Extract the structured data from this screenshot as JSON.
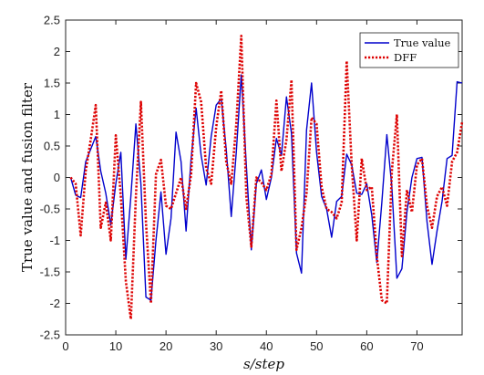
{
  "chart_data": {
    "type": "line",
    "xlabel": "s/step",
    "ylabel": "True value and fusion filter",
    "xlim": [
      0,
      79
    ],
    "ylim": [
      -2.5,
      2.5
    ],
    "xticks": [
      0,
      10,
      20,
      30,
      40,
      50,
      60,
      70
    ],
    "yticks": [
      -2.5,
      -2,
      -1.5,
      -1,
      -0.5,
      0,
      0.5,
      1,
      1.5,
      2,
      2.5
    ],
    "xtick_labels": [
      "0",
      "10",
      "20",
      "30",
      "40",
      "50",
      "60",
      "70"
    ],
    "ytick_labels": [
      "-2.5",
      "-2",
      "-1.5",
      "-1",
      "-0.5",
      "0",
      "0.5",
      "1",
      "1.5",
      "2",
      "2.5"
    ],
    "grid": false,
    "legend_position": "top-right",
    "x": [
      1,
      2,
      3,
      4,
      5,
      6,
      7,
      8,
      9,
      10,
      11,
      12,
      13,
      14,
      15,
      16,
      17,
      18,
      19,
      20,
      21,
      22,
      23,
      24,
      25,
      26,
      27,
      28,
      29,
      30,
      31,
      32,
      33,
      34,
      35,
      36,
      37,
      38,
      39,
      40,
      41,
      42,
      43,
      44,
      45,
      46,
      47,
      48,
      49,
      50,
      51,
      52,
      53,
      54,
      55,
      56,
      57,
      58,
      59,
      60,
      61,
      62,
      63,
      64,
      65,
      66,
      67,
      68,
      69,
      70,
      71,
      72,
      73,
      74,
      75,
      76,
      77,
      78,
      79
    ],
    "series": [
      {
        "name": "True value",
        "color": "#0000cc",
        "style": "solid",
        "values": [
          0,
          -0.28,
          -0.32,
          0.25,
          0.45,
          0.65,
          0.1,
          -0.25,
          -0.75,
          -0.1,
          0.4,
          -1.3,
          -0.3,
          0.85,
          -0.1,
          -1.9,
          -1.95,
          -1.0,
          -0.23,
          -1.22,
          -0.65,
          0.72,
          0.25,
          -0.85,
          0.3,
          1.1,
          0.35,
          -0.12,
          0.65,
          1.15,
          1.25,
          0.45,
          -0.62,
          0.4,
          1.63,
          0.2,
          -1.15,
          -0.1,
          0.12,
          -0.35,
          0.0,
          0.62,
          0.35,
          1.28,
          0.7,
          -1.2,
          -1.52,
          0.75,
          1.5,
          0.4,
          -0.3,
          -0.5,
          -0.95,
          -0.38,
          -0.3,
          0.37,
          0.2,
          -0.25,
          -0.27,
          -0.1,
          -0.6,
          -1.35,
          -0.4,
          0.68,
          -0.15,
          -1.6,
          -1.45,
          -0.55,
          0.0,
          0.3,
          0.32,
          -0.7,
          -1.38,
          -0.85,
          -0.38,
          0.3,
          0.35,
          1.52,
          1.5
        ]
      },
      {
        "name": "DFF",
        "color": "#dd0000",
        "style": "dotted",
        "values": [
          0,
          -0.1,
          -0.92,
          0.1,
          0.6,
          1.15,
          -0.8,
          -0.4,
          -1.0,
          0.67,
          -0.3,
          -1.65,
          -2.25,
          -0.3,
          1.2,
          -0.7,
          -2.0,
          0.05,
          0.28,
          -0.45,
          -0.5,
          -0.25,
          0.0,
          -0.5,
          0.05,
          1.5,
          1.2,
          0.15,
          -0.1,
          0.8,
          1.38,
          0.25,
          -0.1,
          0.85,
          2.25,
          -0.3,
          -1.1,
          0.0,
          -0.08,
          -0.2,
          0.05,
          1.22,
          0.1,
          0.6,
          1.55,
          -1.15,
          -0.8,
          -0.25,
          0.95,
          0.85,
          -0.15,
          -0.5,
          -0.55,
          -0.65,
          -0.4,
          1.85,
          0.2,
          -1.0,
          0.3,
          -0.2,
          -0.15,
          -1.25,
          -1.95,
          -2.0,
          0.1,
          1.0,
          -1.25,
          -0.2,
          -0.55,
          0.2,
          0.3,
          -0.45,
          -0.8,
          -0.3,
          -0.15,
          -0.45,
          0.25,
          0.4,
          0.88
        ]
      }
    ]
  }
}
